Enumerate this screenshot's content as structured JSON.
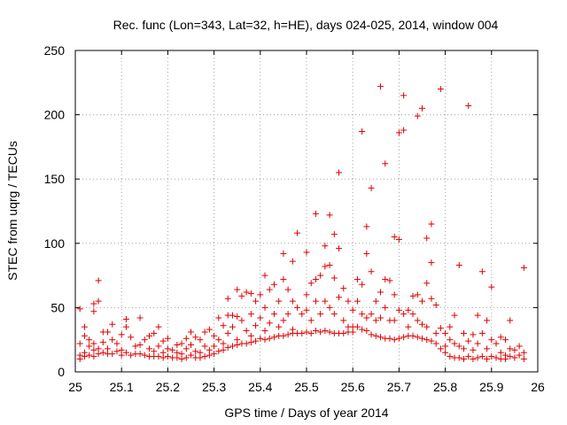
{
  "chart_data": {
    "type": "scatter",
    "title": "Rec. func (Lon=343, Lat=32, h=HE), days 024-025, 2014, window 004",
    "xlabel": "GPS time / Days of year 2014",
    "ylabel": "STEC from uqrg / TECUs",
    "xlim": [
      25,
      26
    ],
    "ylim": [
      0,
      250
    ],
    "xticks": [
      25,
      25.1,
      25.2,
      25.3,
      25.4,
      25.5,
      25.6,
      25.7,
      25.8,
      25.9,
      26
    ],
    "xtick_labels": [
      "25",
      "25.1",
      "25.2",
      "25.3",
      "25.4",
      "25.5",
      "25.6",
      "25.7",
      "25.8",
      "25.9",
      "26"
    ],
    "yticks": [
      0,
      50,
      100,
      150,
      200,
      250
    ],
    "ytick_labels": [
      "0",
      "50",
      "100",
      "150",
      "200",
      "250"
    ],
    "grid": true,
    "marker": "+",
    "color": "#e00000",
    "series": [
      {
        "name": "STEC",
        "points": [
          [
            25.01,
            49
          ],
          [
            25.01,
            22
          ],
          [
            25.01,
            13
          ],
          [
            25.01,
            10
          ],
          [
            25.02,
            35
          ],
          [
            25.02,
            28
          ],
          [
            25.02,
            15
          ],
          [
            25.02,
            12
          ],
          [
            25.03,
            25
          ],
          [
            25.03,
            20
          ],
          [
            25.03,
            13
          ],
          [
            25.04,
            47
          ],
          [
            25.04,
            53
          ],
          [
            25.04,
            22
          ],
          [
            25.04,
            17
          ],
          [
            25.04,
            12
          ],
          [
            25.05,
            55
          ],
          [
            25.05,
            71
          ],
          [
            25.05,
            18
          ],
          [
            25.05,
            14
          ],
          [
            25.06,
            31
          ],
          [
            25.06,
            23
          ],
          [
            25.06,
            15
          ],
          [
            25.07,
            31
          ],
          [
            25.07,
            18
          ],
          [
            25.07,
            14
          ],
          [
            25.08,
            37
          ],
          [
            25.08,
            25
          ],
          [
            25.08,
            14
          ],
          [
            25.09,
            22
          ],
          [
            25.09,
            16
          ],
          [
            25.1,
            29
          ],
          [
            25.1,
            17
          ],
          [
            25.1,
            13
          ],
          [
            25.11,
            35
          ],
          [
            25.11,
            41
          ],
          [
            25.11,
            15
          ],
          [
            25.12,
            27
          ],
          [
            25.12,
            13
          ],
          [
            25.13,
            20
          ],
          [
            25.13,
            14
          ],
          [
            25.14,
            42
          ],
          [
            25.14,
            21
          ],
          [
            25.14,
            14
          ],
          [
            25.15,
            25
          ],
          [
            25.15,
            13
          ],
          [
            25.16,
            28
          ],
          [
            25.16,
            18
          ],
          [
            25.16,
            12
          ],
          [
            25.17,
            30
          ],
          [
            25.17,
            16
          ],
          [
            25.17,
            12
          ],
          [
            25.18,
            35
          ],
          [
            25.18,
            20
          ],
          [
            25.18,
            12
          ],
          [
            25.19,
            24
          ],
          [
            25.19,
            15
          ],
          [
            25.19,
            11
          ],
          [
            25.2,
            26
          ],
          [
            25.2,
            18
          ],
          [
            25.2,
            12
          ],
          [
            25.21,
            17
          ],
          [
            25.21,
            11
          ],
          [
            25.22,
            21
          ],
          [
            25.22,
            15
          ],
          [
            25.22,
            11
          ],
          [
            25.23,
            22
          ],
          [
            25.23,
            14
          ],
          [
            25.23,
            10
          ],
          [
            25.24,
            26
          ],
          [
            25.24,
            18
          ],
          [
            25.24,
            11
          ],
          [
            25.25,
            31
          ],
          [
            25.25,
            21
          ],
          [
            25.25,
            13
          ],
          [
            25.26,
            27
          ],
          [
            25.26,
            16
          ],
          [
            25.26,
            11
          ],
          [
            25.27,
            25
          ],
          [
            25.27,
            15
          ],
          [
            25.27,
            11
          ],
          [
            25.28,
            31
          ],
          [
            25.28,
            20
          ],
          [
            25.28,
            12
          ],
          [
            25.29,
            33
          ],
          [
            25.29,
            17
          ],
          [
            25.29,
            13
          ],
          [
            25.3,
            28
          ],
          [
            25.3,
            20
          ],
          [
            25.3,
            14
          ],
          [
            25.31,
            42
          ],
          [
            25.31,
            25
          ],
          [
            25.31,
            16
          ],
          [
            25.32,
            36
          ],
          [
            25.32,
            22
          ],
          [
            25.32,
            17
          ],
          [
            25.33,
            57
          ],
          [
            25.33,
            44
          ],
          [
            25.33,
            30
          ],
          [
            25.33,
            19
          ],
          [
            25.34,
            44
          ],
          [
            25.34,
            35
          ],
          [
            25.34,
            20
          ],
          [
            25.35,
            64
          ],
          [
            25.35,
            43
          ],
          [
            25.35,
            25
          ],
          [
            25.35,
            21
          ],
          [
            25.36,
            59
          ],
          [
            25.36,
            40
          ],
          [
            25.36,
            22
          ],
          [
            25.37,
            62
          ],
          [
            25.37,
            32
          ],
          [
            25.37,
            22
          ],
          [
            25.38,
            61
          ],
          [
            25.38,
            45
          ],
          [
            25.38,
            28
          ],
          [
            25.38,
            23
          ],
          [
            25.39,
            55
          ],
          [
            25.39,
            36
          ],
          [
            25.39,
            24
          ],
          [
            25.4,
            60
          ],
          [
            25.4,
            42
          ],
          [
            25.4,
            26
          ],
          [
            25.41,
            75
          ],
          [
            25.41,
            50
          ],
          [
            25.41,
            32
          ],
          [
            25.41,
            25
          ],
          [
            25.42,
            64
          ],
          [
            25.42,
            38
          ],
          [
            25.42,
            26
          ],
          [
            25.43,
            68
          ],
          [
            25.43,
            45
          ],
          [
            25.43,
            27
          ],
          [
            25.44,
            55
          ],
          [
            25.44,
            35
          ],
          [
            25.44,
            28
          ],
          [
            25.45,
            92
          ],
          [
            25.45,
            72
          ],
          [
            25.45,
            40
          ],
          [
            25.45,
            28
          ],
          [
            25.46,
            64
          ],
          [
            25.46,
            45
          ],
          [
            25.46,
            29
          ],
          [
            25.47,
            86
          ],
          [
            25.47,
            55
          ],
          [
            25.47,
            33
          ],
          [
            25.47,
            30
          ],
          [
            25.48,
            108
          ],
          [
            25.48,
            50
          ],
          [
            25.48,
            30
          ],
          [
            25.49,
            45
          ],
          [
            25.49,
            30
          ],
          [
            25.5,
            93
          ],
          [
            25.5,
            60
          ],
          [
            25.5,
            48
          ],
          [
            25.5,
            31
          ],
          [
            25.51,
            69
          ],
          [
            25.51,
            40
          ],
          [
            25.51,
            30
          ],
          [
            25.52,
            123
          ],
          [
            25.52,
            72
          ],
          [
            25.52,
            55
          ],
          [
            25.52,
            32
          ],
          [
            25.53,
            75
          ],
          [
            25.53,
            45
          ],
          [
            25.53,
            31
          ],
          [
            25.54,
            98
          ],
          [
            25.54,
            82
          ],
          [
            25.54,
            55
          ],
          [
            25.54,
            32
          ],
          [
            25.55,
            122
          ],
          [
            25.55,
            83
          ],
          [
            25.55,
            50
          ],
          [
            25.55,
            31
          ],
          [
            25.56,
            107
          ],
          [
            25.56,
            73
          ],
          [
            25.56,
            45
          ],
          [
            25.56,
            30
          ],
          [
            25.57,
            155
          ],
          [
            25.57,
            96
          ],
          [
            25.57,
            58
          ],
          [
            25.57,
            30
          ],
          [
            25.58,
            65
          ],
          [
            25.58,
            40
          ],
          [
            25.58,
            30
          ],
          [
            25.59,
            55
          ],
          [
            25.59,
            35
          ],
          [
            25.59,
            31
          ],
          [
            25.6,
            48
          ],
          [
            25.6,
            35
          ],
          [
            25.6,
            31
          ],
          [
            25.61,
            72
          ],
          [
            25.61,
            55
          ],
          [
            25.61,
            35
          ],
          [
            25.62,
            187
          ],
          [
            25.62,
            68
          ],
          [
            25.62,
            45
          ],
          [
            25.62,
            33
          ],
          [
            25.63,
            113
          ],
          [
            25.63,
            92
          ],
          [
            25.63,
            42
          ],
          [
            25.63,
            32
          ],
          [
            25.64,
            143
          ],
          [
            25.64,
            78
          ],
          [
            25.64,
            45
          ],
          [
            25.64,
            29
          ],
          [
            25.65,
            55
          ],
          [
            25.65,
            40
          ],
          [
            25.65,
            28
          ],
          [
            25.66,
            222
          ],
          [
            25.66,
            62
          ],
          [
            25.66,
            42
          ],
          [
            25.66,
            27
          ],
          [
            25.67,
            162
          ],
          [
            25.67,
            72
          ],
          [
            25.67,
            50
          ],
          [
            25.67,
            26
          ],
          [
            25.68,
            71
          ],
          [
            25.68,
            40
          ],
          [
            25.68,
            26
          ],
          [
            25.69,
            105
          ],
          [
            25.69,
            60
          ],
          [
            25.69,
            40
          ],
          [
            25.69,
            25
          ],
          [
            25.7,
            186
          ],
          [
            25.7,
            103
          ],
          [
            25.7,
            48
          ],
          [
            25.7,
            26
          ],
          [
            25.71,
            188
          ],
          [
            25.71,
            215
          ],
          [
            25.71,
            45
          ],
          [
            25.71,
            27
          ],
          [
            25.72,
            48
          ],
          [
            25.72,
            35
          ],
          [
            25.72,
            28
          ],
          [
            25.73,
            59
          ],
          [
            25.73,
            45
          ],
          [
            25.73,
            28
          ],
          [
            25.74,
            199
          ],
          [
            25.74,
            60
          ],
          [
            25.74,
            40
          ],
          [
            25.74,
            27
          ],
          [
            25.75,
            205
          ],
          [
            25.75,
            55
          ],
          [
            25.75,
            37
          ],
          [
            25.75,
            26
          ],
          [
            25.76,
            104
          ],
          [
            25.76,
            69
          ],
          [
            25.76,
            35
          ],
          [
            25.76,
            25
          ],
          [
            25.77,
            115
          ],
          [
            25.77,
            85
          ],
          [
            25.77,
            57
          ],
          [
            25.77,
            24
          ],
          [
            25.78,
            52
          ],
          [
            25.78,
            30
          ],
          [
            25.78,
            22
          ],
          [
            25.79,
            220
          ],
          [
            25.79,
            34
          ],
          [
            25.79,
            18
          ],
          [
            25.8,
            30
          ],
          [
            25.8,
            20
          ],
          [
            25.8,
            15
          ],
          [
            25.81,
            35
          ],
          [
            25.81,
            25
          ],
          [
            25.81,
            12
          ],
          [
            25.82,
            44
          ],
          [
            25.82,
            22
          ],
          [
            25.82,
            11
          ],
          [
            25.83,
            83
          ],
          [
            25.83,
            20
          ],
          [
            25.83,
            11
          ],
          [
            25.84,
            30
          ],
          [
            25.84,
            18
          ],
          [
            25.84,
            10
          ],
          [
            25.85,
            207
          ],
          [
            25.85,
            24
          ],
          [
            25.85,
            12
          ],
          [
            25.86,
            29
          ],
          [
            25.86,
            17
          ],
          [
            25.86,
            10
          ],
          [
            25.87,
            44
          ],
          [
            25.87,
            22
          ],
          [
            25.87,
            11
          ],
          [
            25.88,
            78
          ],
          [
            25.88,
            30
          ],
          [
            25.88,
            12
          ],
          [
            25.89,
            40
          ],
          [
            25.89,
            18
          ],
          [
            25.89,
            10
          ],
          [
            25.9,
            66
          ],
          [
            25.9,
            25
          ],
          [
            25.9,
            12
          ],
          [
            25.91,
            22
          ],
          [
            25.91,
            11
          ],
          [
            25.92,
            27
          ],
          [
            25.92,
            15
          ],
          [
            25.92,
            10
          ],
          [
            25.93,
            25
          ],
          [
            25.93,
            13
          ],
          [
            25.93,
            10
          ],
          [
            25.94,
            40
          ],
          [
            25.94,
            18
          ],
          [
            25.94,
            12
          ],
          [
            25.95,
            17
          ],
          [
            25.95,
            11
          ],
          [
            25.96,
            20
          ],
          [
            25.96,
            13
          ],
          [
            25.97,
            81
          ],
          [
            25.97,
            15
          ],
          [
            25.97,
            10
          ]
        ]
      }
    ]
  }
}
